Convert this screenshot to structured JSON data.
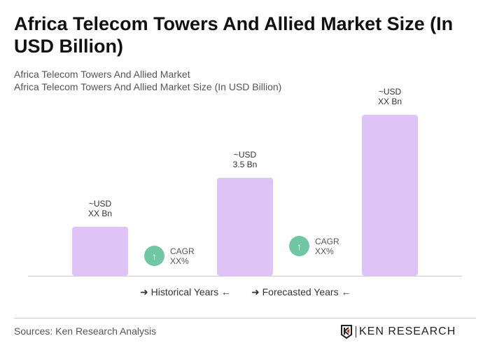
{
  "title": "Africa Telecom Towers And Allied Market Size (In USD Billion)",
  "subtitle1": "Africa Telecom Towers And Allied Market",
  "subtitle2": "Africa Telecom Towers And Allied Market Size (In USD Billion)",
  "chart_data": {
    "type": "bar",
    "categories": [
      "",
      "",
      ""
    ],
    "values": [
      1.75,
      3.5,
      5.75
    ],
    "data_labels": [
      [
        "~USD",
        "XX Bn"
      ],
      [
        "~USD",
        "3.5 Bn"
      ],
      [
        "~USD",
        "XX Bn"
      ]
    ],
    "bar_color": "#dfc3f7",
    "cagr": [
      {
        "label": "CAGR",
        "value": "XX%"
      },
      {
        "label": "CAGR",
        "value": "XX%"
      }
    ],
    "cagr_color": "#6fc7a3",
    "legend": [
      "Historical Years",
      "Forecasted Years"
    ]
  },
  "footer": {
    "sources": "Sources: Ken Research Analysis",
    "logo": "KEN RESEARCH"
  }
}
